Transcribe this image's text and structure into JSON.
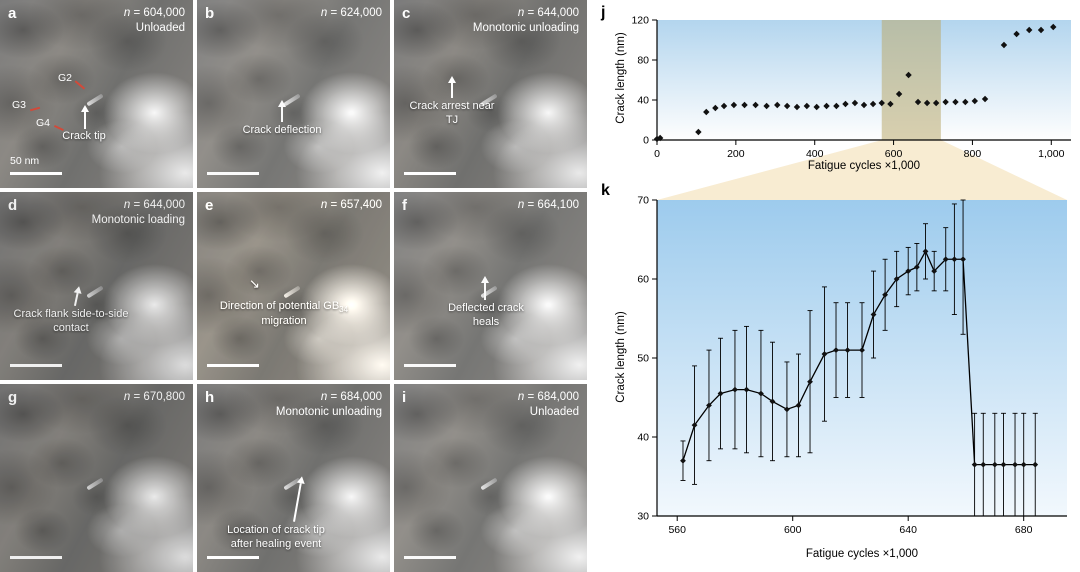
{
  "labels": {
    "n_symbol": "n"
  },
  "panels": [
    {
      "letter": "a",
      "n_value": " = 604,000",
      "condition": "Unloaded",
      "grains": [
        "G2",
        "G3",
        "G4"
      ],
      "annotation": "Crack tip",
      "scalebar": "50 nm"
    },
    {
      "letter": "b",
      "n_value": " = 624,000",
      "condition": "",
      "annotation": "Crack deflection"
    },
    {
      "letter": "c",
      "n_value": " = 644,000",
      "condition": "Monotonic unloading",
      "annotation": "Crack arrest near TJ"
    },
    {
      "letter": "d",
      "n_value": " = 644,000",
      "condition": "Monotonic loading",
      "annotation": "Crack flank side-to-side contact"
    },
    {
      "letter": "e",
      "n_value": " = 657,400",
      "condition": "",
      "annotation_pre": "Direction of potential GB",
      "annotation_sub": "34",
      "annotation_post": " migration"
    },
    {
      "letter": "f",
      "n_value": " = 664,100",
      "condition": "",
      "annotation": "Deflected crack heals"
    },
    {
      "letter": "g",
      "n_value": " = 670,800",
      "condition": ""
    },
    {
      "letter": "h",
      "n_value": " = 684,000",
      "condition": "Monotonic unloading",
      "annotation": "Location of crack tip after healing event"
    },
    {
      "letter": "i",
      "n_value": " = 684,000",
      "condition": "Unloaded"
    }
  ],
  "chart_data": [
    {
      "id": "j",
      "panel_label": "j",
      "type": "scatter",
      "xlabel": "Fatigue cycles ×1,000",
      "ylabel": "Crack length (nm)",
      "xlim": [
        0,
        1050
      ],
      "ylim": [
        0,
        120
      ],
      "xticks": [
        0,
        200,
        400,
        600,
        800,
        1000
      ],
      "xtick_labels": [
        "0",
        "200",
        "400",
        "600",
        "800",
        "1,000"
      ],
      "yticks": [
        0,
        40,
        80,
        120
      ],
      "highlight_band_x": [
        570,
        720
      ],
      "band_color": "rgba(186,170,110,0.55)",
      "bg_gradient": [
        "#b3d5ee",
        "#fefefe"
      ],
      "points": [
        [
          0,
          1
        ],
        [
          8,
          2
        ],
        [
          105,
          8
        ],
        [
          125,
          28
        ],
        [
          148,
          32
        ],
        [
          170,
          34
        ],
        [
          195,
          35
        ],
        [
          222,
          35
        ],
        [
          250,
          35
        ],
        [
          278,
          34
        ],
        [
          305,
          35
        ],
        [
          330,
          34
        ],
        [
          355,
          33
        ],
        [
          380,
          34
        ],
        [
          405,
          33
        ],
        [
          430,
          34
        ],
        [
          455,
          34
        ],
        [
          478,
          36
        ],
        [
          502,
          37
        ],
        [
          525,
          35
        ],
        [
          548,
          36
        ],
        [
          570,
          37
        ],
        [
          592,
          36
        ],
        [
          614,
          46
        ],
        [
          638,
          65
        ],
        [
          662,
          38
        ],
        [
          685,
          37
        ],
        [
          708,
          37
        ],
        [
          732,
          38
        ],
        [
          757,
          38
        ],
        [
          782,
          38
        ],
        [
          806,
          39
        ],
        [
          832,
          41
        ],
        [
          880,
          95
        ],
        [
          912,
          106
        ],
        [
          944,
          110
        ],
        [
          974,
          110
        ],
        [
          1005,
          113
        ]
      ]
    },
    {
      "id": "k",
      "panel_label": "k",
      "type": "line_errorbar",
      "xlabel": "Fatigue cycles ×1,000",
      "ylabel": "Crack length (nm)",
      "xlim": [
        553,
        695
      ],
      "ylim": [
        30,
        70
      ],
      "xticks": [
        560,
        600,
        640,
        680
      ],
      "xtick_labels": [
        "560",
        "600",
        "640",
        "680"
      ],
      "yticks": [
        30,
        40,
        50,
        60,
        70
      ],
      "bg_gradient": [
        "#9dcbed",
        "#f2f8fd"
      ],
      "points": [
        [
          562,
          37,
          2.5
        ],
        [
          566,
          41.5,
          7.5
        ],
        [
          571,
          44,
          7
        ],
        [
          575,
          45.5,
          7
        ],
        [
          580,
          46,
          7.5
        ],
        [
          584,
          46,
          8
        ],
        [
          589,
          45.5,
          8
        ],
        [
          593,
          44.5,
          7.5
        ],
        [
          598,
          43.5,
          6
        ],
        [
          602,
          44,
          6.5
        ],
        [
          606,
          47,
          9
        ],
        [
          611,
          50.5,
          8.5
        ],
        [
          615,
          51,
          6
        ],
        [
          619,
          51,
          6
        ],
        [
          624,
          51,
          6
        ],
        [
          628,
          55.5,
          5.5
        ],
        [
          632,
          58,
          4.5
        ],
        [
          636,
          60,
          3.5
        ],
        [
          640,
          61,
          3
        ],
        [
          643,
          61.5,
          3
        ],
        [
          646,
          63.5,
          3.5
        ],
        [
          649,
          61,
          2.5
        ],
        [
          653,
          62.5,
          4
        ],
        [
          656,
          62.5,
          7
        ],
        [
          659,
          62.5,
          9.5
        ],
        [
          663,
          36.5,
          6.5
        ],
        [
          666,
          36.5,
          6.5
        ],
        [
          670,
          36.5,
          6.5
        ],
        [
          673,
          36.5,
          6.5
        ],
        [
          677,
          36.5,
          6.5
        ],
        [
          680,
          36.5,
          6.5
        ],
        [
          684,
          36.5,
          6.5
        ]
      ]
    }
  ]
}
